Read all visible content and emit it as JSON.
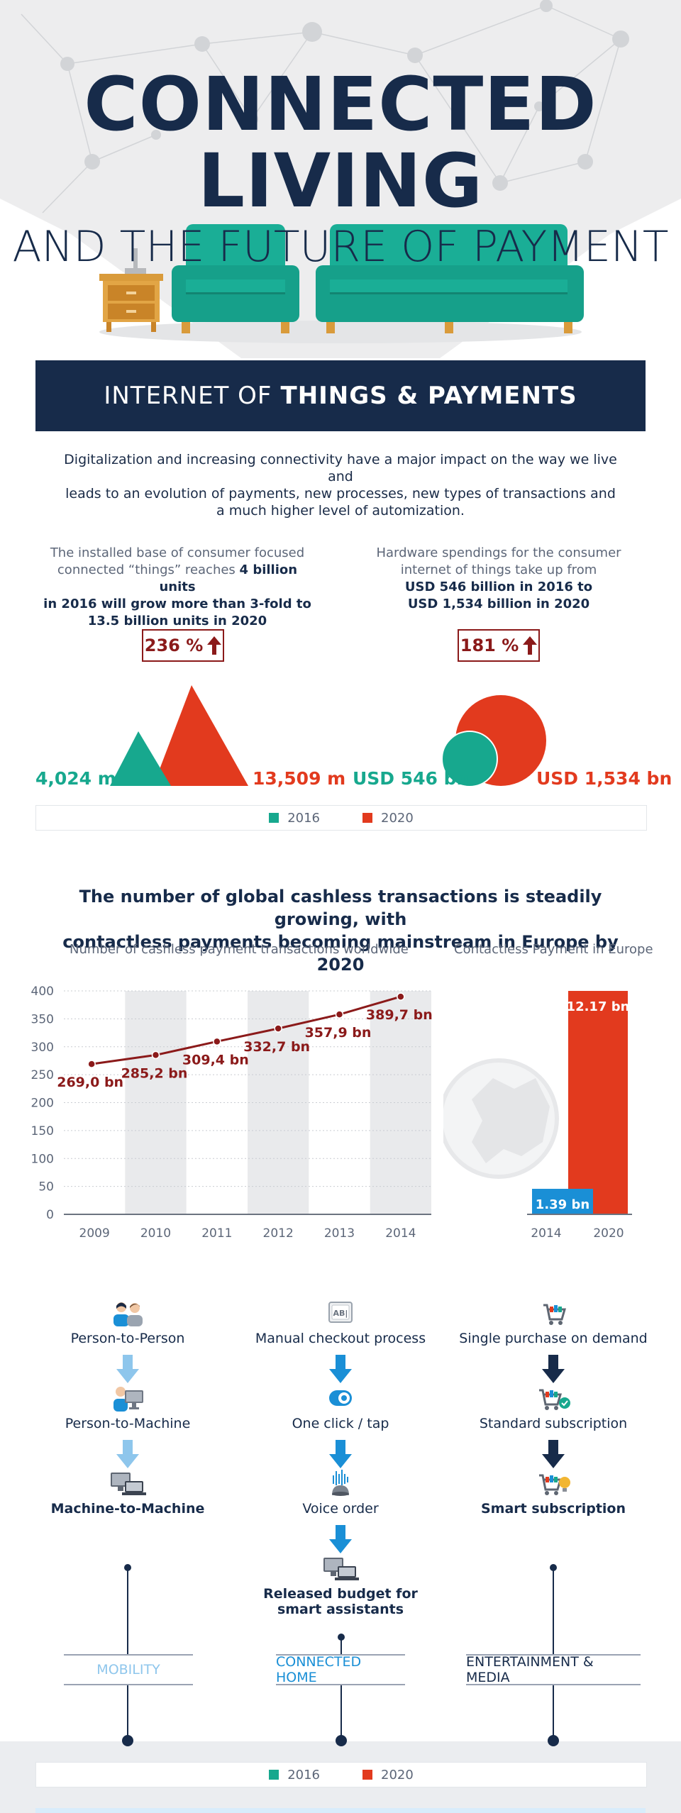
{
  "hero": {
    "title_line1": "CONNECTED",
    "title_line2": "LIVING",
    "subtitle": "AND THE FUTURE OF PAYMENT"
  },
  "banner": {
    "light": "INTERNET OF",
    "bold": "THINGS & PAYMENTS"
  },
  "intro": {
    "line1": "Digitalization and increasing connectivity have a major impact on the way we live and",
    "line2": "leads to an evolution of payments, new processes, new types of transactions and",
    "line3": "a much higher level of automization."
  },
  "stat_left": {
    "line1": "The installed base of consumer focused",
    "line2a": "connected “things” reaches ",
    "line2b": "4 billion units",
    "line3": "in 2016 will grow more than 3-fold to",
    "line4": "13.5 billion units in 2020",
    "pct": "236 %",
    "value_2016": "4,024 m",
    "value_2020": "13,509 m"
  },
  "stat_right": {
    "line1": "Hardware spendings for the consumer",
    "line2": "internet of things take up from",
    "line3": "USD 546 billion in 2016 to",
    "line4": "USD 1,534 billion in 2020",
    "pct": "181 %",
    "value_2016": "USD 546 bn",
    "value_2020": "USD 1,534 bn"
  },
  "legend": {
    "label_2016": "2016",
    "label_2020": "2020"
  },
  "colors": {
    "c2016": "#17a88e",
    "c2020": "#e23a1e",
    "navy": "#172b4a",
    "dark_red": "#8b1a1a",
    "blue": "#1a8fd6",
    "light_blue": "#8ec6ec"
  },
  "section2": {
    "title_line1": "The number of global cashless transactions is steadily growing, with",
    "title_line2": "contactless payments becoming mainstream in Europe by 2020",
    "sub_left": "Number of cashless payment transactions worldwide",
    "sub_right": "Contactless Payment in Europe"
  },
  "chart_data": [
    {
      "type": "line",
      "title": "Number of cashless payment transactions worldwide",
      "categories": [
        "2009",
        "2010",
        "2011",
        "2012",
        "2013",
        "2014"
      ],
      "values": [
        269.0,
        285.2,
        309.4,
        332.7,
        357.9,
        389.7
      ],
      "labels": [
        "269,0 bn",
        "285,2 bn",
        "309,4 bn",
        "332,7 bn",
        "357,9 bn",
        "389,7 bn"
      ],
      "yticks": [
        0,
        50,
        100,
        150,
        200,
        250,
        300,
        350,
        400
      ],
      "ylim": [
        0,
        400
      ],
      "grid": true
    },
    {
      "type": "bar",
      "title": "Contactless Payment in Europe",
      "categories": [
        "2014",
        "2020"
      ],
      "values": [
        1.39,
        12.17
      ],
      "labels": [
        "1.39 bn",
        "12.17 bn"
      ],
      "ylim": [
        0,
        12.17
      ]
    }
  ],
  "flows": {
    "col1": {
      "items": [
        "Person-to-Person",
        "Person-to-Machine",
        "Machine-to-Machine"
      ],
      "category": "MOBILITY"
    },
    "col2": {
      "items": [
        "Manual checkout process",
        "One click / tap",
        "Voice order"
      ],
      "final_line1": "Released budget for",
      "final_line2": "smart assistants",
      "category": "CONNECTED HOME"
    },
    "col3": {
      "items": [
        "Single purchase on demand",
        "Standard subscription",
        "Smart subscription"
      ],
      "category": "ENTERTAINMENT & MEDIA"
    },
    "icons": [
      "people-icon",
      "person-computer-icon",
      "computers-icon",
      "keyboard-key-icon",
      "toggle-icon",
      "voice-assistant-icon",
      "laptop-monitor-icon",
      "cart-icon",
      "cart-check-icon",
      "cart-bulb-icon"
    ]
  }
}
